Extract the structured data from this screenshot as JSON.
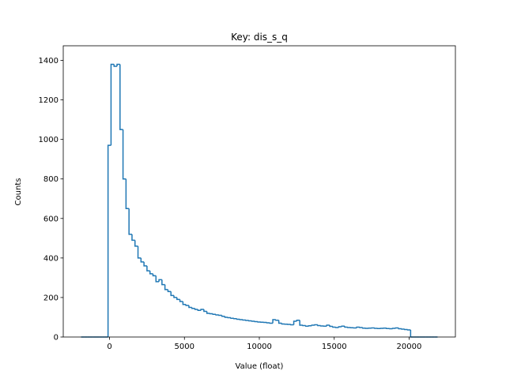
{
  "chart_data": {
    "type": "histogram",
    "title": "Key: dis_s_q",
    "x_label": "Value (float)",
    "y_label": "Counts",
    "color": "#1f77b4",
    "bins": [
      -1900,
      -1700,
      -1500,
      -1300,
      -1100,
      -900,
      -700,
      -500,
      -300,
      -100,
      100,
      300,
      500,
      700,
      900,
      1100,
      1300,
      1500,
      1700,
      1900,
      2100,
      2300,
      2500,
      2700,
      2900,
      3100,
      3300,
      3500,
      3700,
      3900,
      4100,
      4300,
      4500,
      4700,
      4900,
      5100,
      5300,
      5500,
      5700,
      5900,
      6100,
      6300,
      6500,
      6700,
      6900,
      7100,
      7300,
      7500,
      7700,
      7900,
      8100,
      8300,
      8500,
      8700,
      8900,
      9100,
      9300,
      9500,
      9700,
      9900,
      10100,
      10300,
      10500,
      10700,
      10900,
      11100,
      11300,
      11500,
      11700,
      11900,
      12100,
      12300,
      12500,
      12700,
      12900,
      13100,
      13300,
      13500,
      13700,
      13900,
      14100,
      14300,
      14500,
      14700,
      14900,
      15100,
      15300,
      15500,
      15700,
      15900,
      16100,
      16300,
      16500,
      16700,
      16900,
      17100,
      17300,
      17500,
      17700,
      17900,
      18100,
      18300,
      18500,
      18700,
      18900,
      19100,
      19300,
      19500,
      19700,
      19900,
      20100,
      20300,
      20500,
      20700,
      20900,
      21100,
      21300,
      21500,
      21700,
      21900
    ],
    "values": [
      0,
      0,
      0,
      0,
      0,
      0,
      0,
      0,
      0,
      970,
      1380,
      1370,
      1380,
      1050,
      800,
      650,
      520,
      490,
      460,
      400,
      380,
      360,
      335,
      320,
      310,
      280,
      290,
      265,
      240,
      230,
      210,
      200,
      190,
      180,
      165,
      160,
      150,
      145,
      140,
      135,
      140,
      130,
      120,
      118,
      115,
      112,
      110,
      105,
      100,
      98,
      95,
      93,
      90,
      88,
      86,
      84,
      82,
      80,
      78,
      76,
      75,
      74,
      72,
      70,
      88,
      85,
      70,
      66,
      65,
      64,
      62,
      80,
      85,
      60,
      58,
      55,
      57,
      60,
      62,
      58,
      56,
      55,
      60,
      54,
      50,
      48,
      52,
      55,
      50,
      48,
      47,
      46,
      50,
      48,
      45,
      44,
      45,
      46,
      44,
      43,
      44,
      45,
      43,
      42,
      44,
      46,
      42,
      40,
      38,
      36,
      0,
      0,
      0,
      0,
      0,
      0,
      0,
      0,
      0
    ],
    "xlim": [
      -3090,
      23090
    ],
    "ylim": [
      0,
      1474
    ],
    "xticks": [
      0,
      5000,
      10000,
      15000,
      20000
    ],
    "yticks": [
      0,
      200,
      400,
      600,
      800,
      1000,
      1200,
      1400
    ]
  }
}
